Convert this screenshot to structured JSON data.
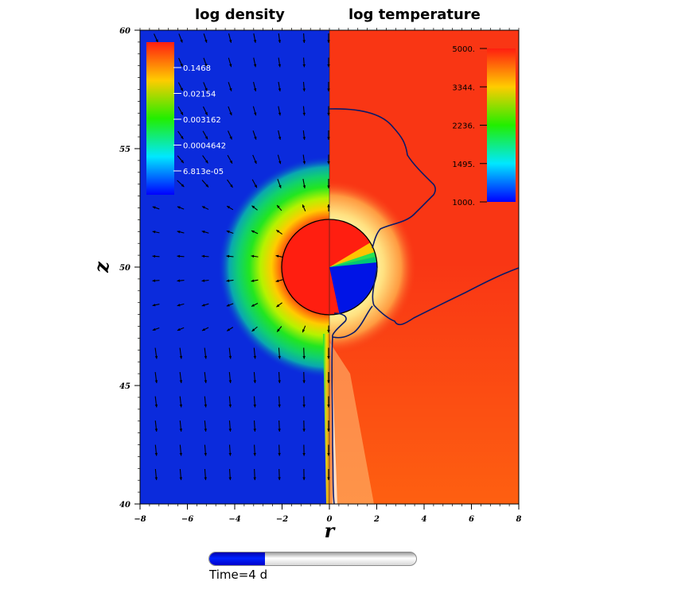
{
  "titles": {
    "left": "log density",
    "right": "log temperature"
  },
  "axes": {
    "xlabel": "r",
    "ylabel": "z",
    "x_ticks": [
      "−8",
      "−6",
      "−4",
      "−2",
      "0",
      "2",
      "4",
      "6",
      "8"
    ],
    "y_ticks": [
      "40",
      "45",
      "50",
      "55",
      "60"
    ],
    "xlim": [
      -8,
      8
    ],
    "ylim": [
      40,
      60
    ]
  },
  "density_legend": {
    "labels": [
      "0.1468",
      "0.02154",
      "0.003162",
      "0.0004642",
      "6.813e-05"
    ],
    "colors": [
      "#ff2200",
      "#ffcc00",
      "#00ee00",
      "#00eeff",
      "#0000ff"
    ]
  },
  "temperature_legend": {
    "labels": [
      "5000.",
      "3344.",
      "2236.",
      "1495.",
      "1000."
    ],
    "colors": [
      "#ff2200",
      "#ffcc00",
      "#00ee00",
      "#00eeff",
      "#0000ff"
    ]
  },
  "field_colors": {
    "background_density": "#0b2bdc",
    "background_temperature": "#f93614",
    "star": "#ff1e10",
    "star_cold": "#0014e6"
  },
  "time": {
    "label": "Time=4 d",
    "progress": 0.27
  }
}
